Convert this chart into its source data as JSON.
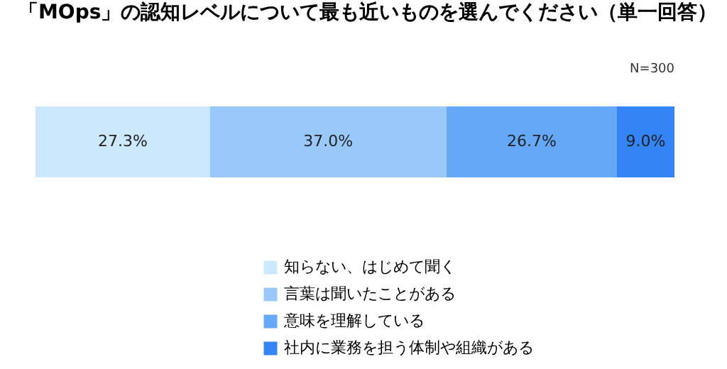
{
  "chart_data": {
    "type": "bar",
    "orientation": "horizontal",
    "stacked": true,
    "title": "「MOps」の認知レベルについて最も近いものを選んでください（単一回答）",
    "annotations": [
      "N=300"
    ],
    "categories": [
      null
    ],
    "legend": "bottom",
    "series": [
      {
        "name": "知らない、はじめて聞く",
        "color": "#cce8fd",
        "values": [
          27.3
        ],
        "value_labels": [
          "27.3%"
        ]
      },
      {
        "name": "言葉は聞いたことがある",
        "color": "#99c9fb",
        "values": [
          37.0
        ],
        "value_labels": [
          "37.0%"
        ]
      },
      {
        "name": "意味を理解している",
        "color": "#66a8f8",
        "values": [
          26.7
        ],
        "value_labels": [
          "26.7%"
        ]
      },
      {
        "name": "社内に業務を担う体制や組織がある",
        "color": "#3385f5",
        "values": [
          9.0
        ],
        "value_labels": [
          "9.0%"
        ]
      }
    ]
  }
}
